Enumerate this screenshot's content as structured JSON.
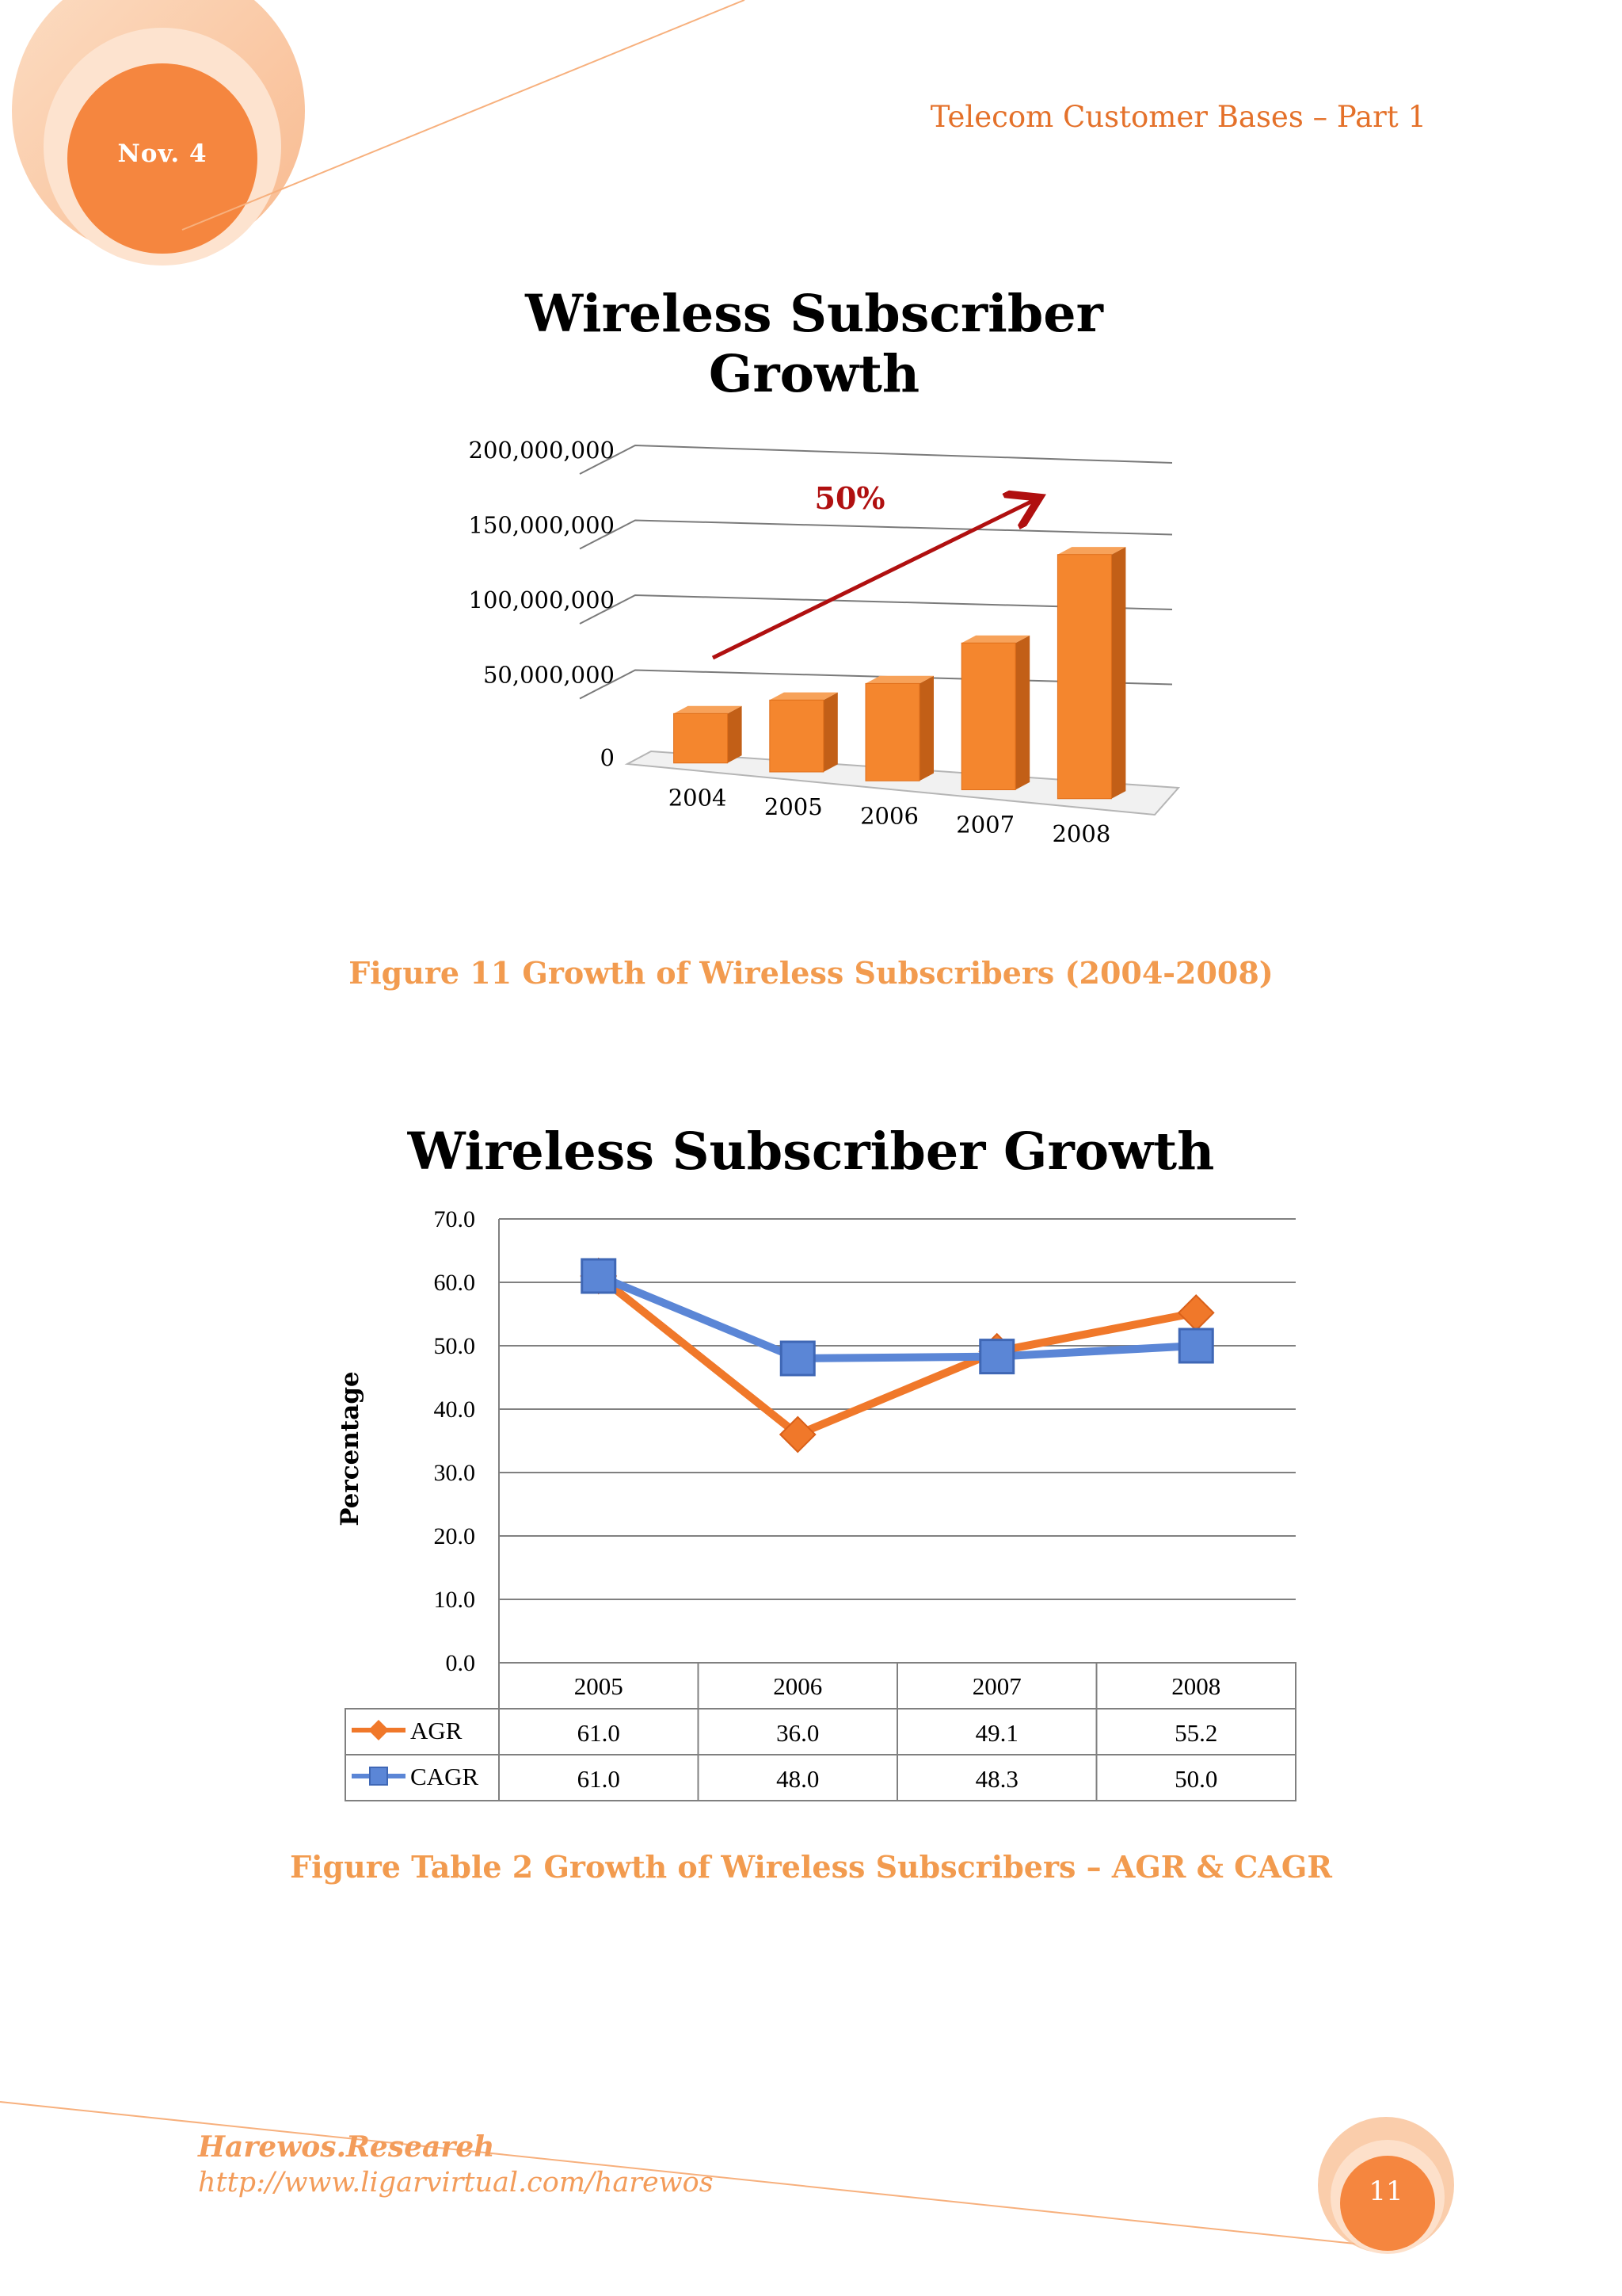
{
  "header": {
    "date_badge": "Nov. 4",
    "running_title": "Telecom Customer Bases – Part 1"
  },
  "colors": {
    "accent_orange": "#f0782a",
    "bar_orange": "#f4862e",
    "arrow_red": "#b01010",
    "cagr_blue": "#5b86d6",
    "caption_orange": "#f29b4f"
  },
  "chart_data": [
    {
      "type": "bar",
      "title_line1": "Wireless Subscriber",
      "title_line2": "Growth",
      "categories": [
        "2004",
        "2005",
        "2006",
        "2007",
        "2008"
      ],
      "values": [
        33000000,
        48000000,
        65000000,
        98000000,
        163000000
      ],
      "ylim": [
        0,
        200000000
      ],
      "yticks": [
        "0",
        "50,000,000",
        "100,000,000",
        "150,000,000",
        "200,000,000"
      ],
      "annotation": "50%",
      "grid": true,
      "style": "3d-column"
    },
    {
      "type": "line",
      "title": "Wireless Subscriber Growth",
      "ylabel": "Percentage",
      "categories": [
        "2005",
        "2006",
        "2007",
        "2008"
      ],
      "ylim": [
        0,
        70
      ],
      "yticks": [
        "0.0",
        "10.0",
        "20.0",
        "30.0",
        "40.0",
        "50.0",
        "60.0",
        "70.0"
      ],
      "series": [
        {
          "name": "AGR",
          "values": [
            61.0,
            36.0,
            49.1,
            55.2
          ],
          "labels": [
            "61.0",
            "36.0",
            "49.1",
            "55.2"
          ],
          "color": "#f0782a",
          "marker": "diamond"
        },
        {
          "name": "CAGR",
          "values": [
            61.0,
            48.0,
            48.3,
            50.0
          ],
          "labels": [
            "61.0",
            "48.0",
            "48.3",
            "50.0"
          ],
          "color": "#5b86d6",
          "marker": "square"
        }
      ],
      "grid": true,
      "data_table": true
    }
  ],
  "captions": {
    "figure11": "Figure 11 Growth of Wireless Subscribers (2004-2008)",
    "figure_table2": "Figure Table 2 Growth of Wireless Subscribers – AGR & CAGR"
  },
  "footer": {
    "org": "Harewos.Researeh",
    "url": "http://www.ligarvirtual.com/harewos",
    "page_number": "11"
  }
}
